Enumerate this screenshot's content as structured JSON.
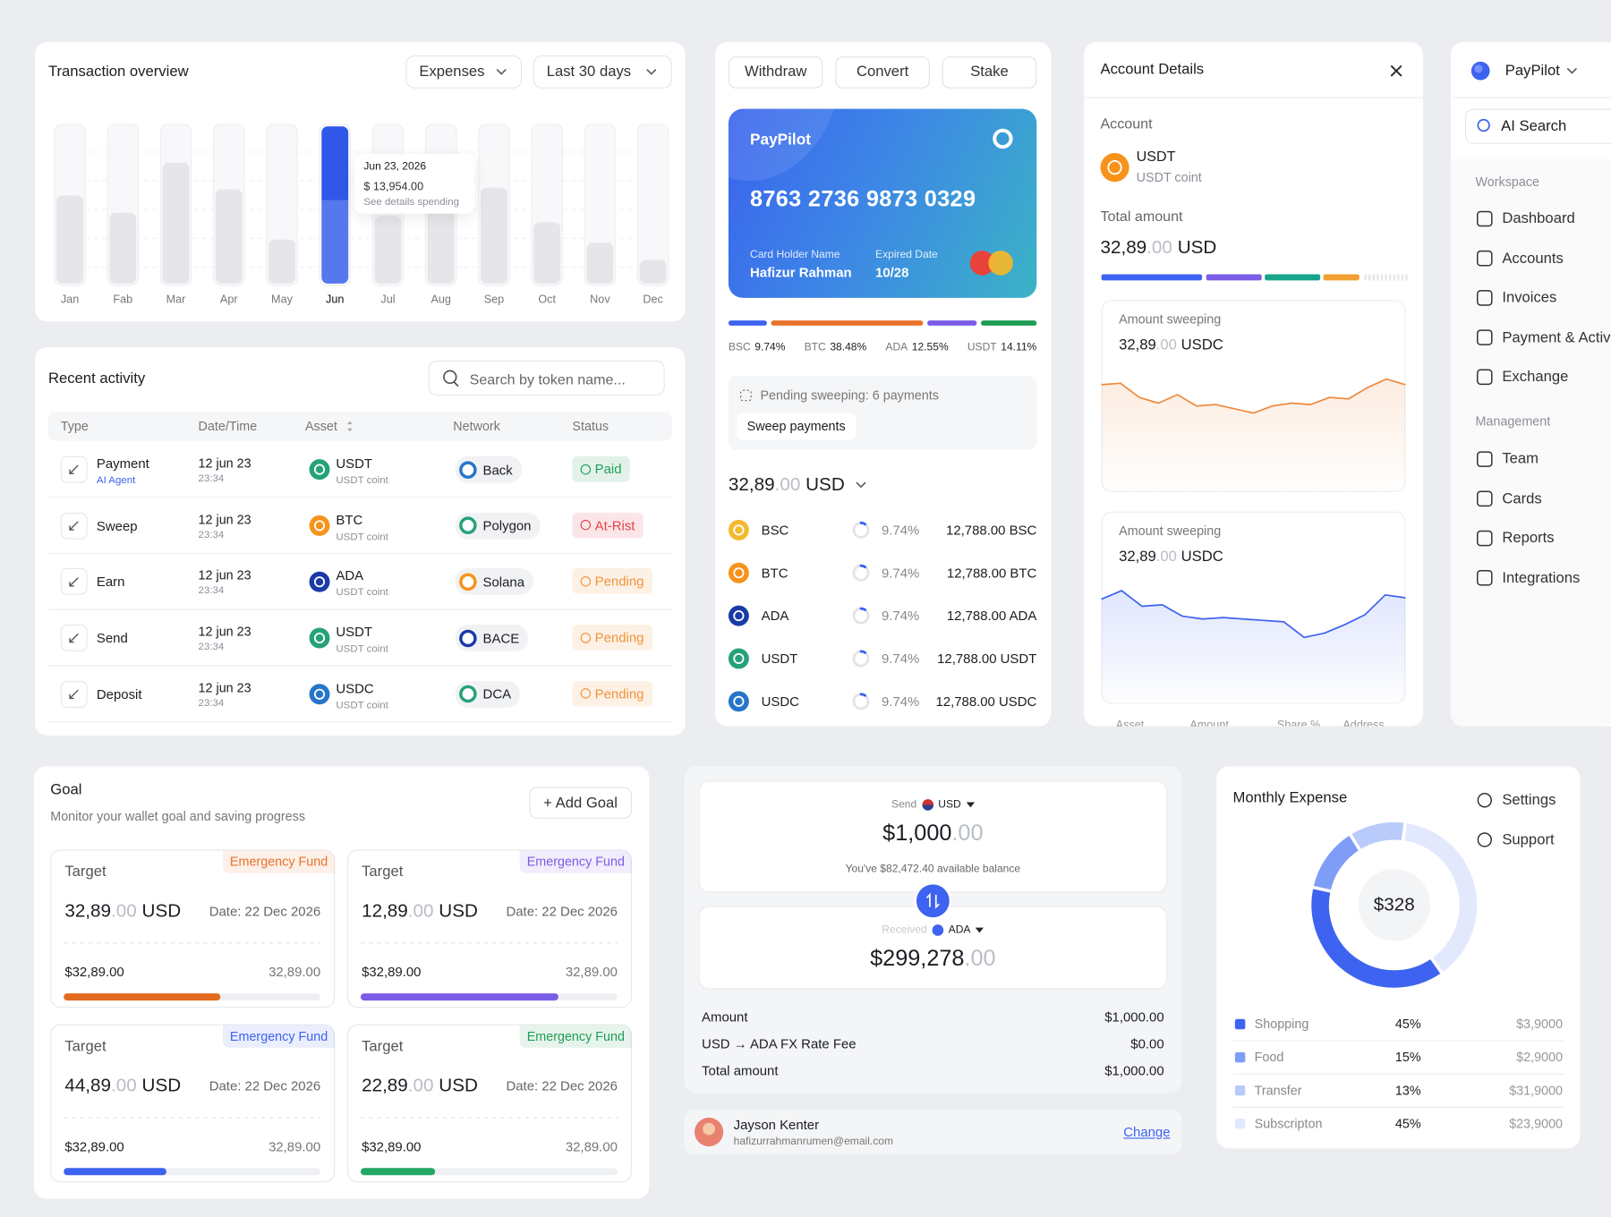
{
  "transaction_overview": {
    "title": "Transaction overview",
    "filters": [
      "Expenses",
      "Last 30 days"
    ],
    "chart": {
      "type": "bar",
      "categories": [
        "Jan",
        "Fab",
        "Mar",
        "Apr",
        "May",
        "Jun",
        "Jul",
        "Aug",
        "Sep",
        "Oct",
        "Nov",
        "Dec"
      ],
      "values": [
        56,
        45,
        77,
        60,
        28,
        100,
        43,
        47,
        61,
        39,
        26,
        15
      ],
      "ylim": [
        0,
        100
      ],
      "color": "#e6e6ea",
      "highlight": "Jun",
      "highlight_color": "#2f57e8"
    },
    "tooltip": {
      "date": "Jun 23, 2026",
      "amount": "$ 13,954.00",
      "note": "See details spending"
    }
  },
  "recent_activity": {
    "title": "Recent activity",
    "search_placeholder": "Search by token name...",
    "columns": [
      "Type",
      "Date/Time",
      "Asset",
      "Network",
      "Status"
    ],
    "rows": [
      {
        "type": "Payment",
        "type_note": "AI Agent",
        "date": "12 jun 23",
        "time": "23:34",
        "asset": "USDT",
        "asset_note": "USDT coint",
        "asset_color": "#26a17b",
        "network": "Back",
        "network_color": "#2775ca",
        "status": "Paid",
        "status_color": "#22a05a"
      },
      {
        "type": "Sweep",
        "date": "12 jun 23",
        "time": "23:34",
        "asset": "BTC",
        "asset_note": "USDT coint",
        "asset_color": "#f7931a",
        "network": "Polygon",
        "network_color": "#26a17b",
        "status": "At-Rist",
        "status_color": "#e0454b"
      },
      {
        "type": "Earn",
        "date": "12 jun 23",
        "time": "23:34",
        "asset": "ADA",
        "asset_note": "USDT coint",
        "asset_color": "#1a3aa8",
        "network": "Solana",
        "network_color": "#f7931a",
        "status": "Pending",
        "status_color": "#f0933c"
      },
      {
        "type": "Send",
        "date": "12 jun 23",
        "time": "23:34",
        "asset": "USDT",
        "asset_note": "USDT coint",
        "asset_color": "#26a17b",
        "network": "BACE",
        "network_color": "#1a3aa8",
        "status": "Pending",
        "status_color": "#f0933c"
      },
      {
        "type": "Deposit",
        "date": "12 jun 23",
        "time": "23:34",
        "asset": "USDC",
        "asset_note": "USDT coint",
        "asset_color": "#2775ca",
        "network": "DCA",
        "network_color": "#26a17b",
        "status": "Pending",
        "status_color": "#f0933c"
      }
    ]
  },
  "card_panel": {
    "actions": [
      "Withdraw",
      "Convert",
      "Stake"
    ],
    "card": {
      "brand": "PayPilot",
      "number": "8763 2736 9873 0329",
      "holder_label": "Card Holder Name",
      "holder": "Hafizur Rahman",
      "expiry_label": "Expired Date",
      "expiry": "10/28"
    },
    "allocation": {
      "categories": [
        "BSC",
        "BTC",
        "ADA",
        "USDT"
      ],
      "values": [
        9.74,
        38.48,
        12.55,
        14.11
      ],
      "value_labels": [
        "9.74%",
        "38.48%",
        "12.55%",
        "14.11%"
      ],
      "colors": [
        "#3d63f0",
        "#e8722a",
        "#7b5ce6",
        "#1f9d55"
      ]
    },
    "pending": {
      "text": "Pending sweeping: 6 payments",
      "button": "Sweep payments"
    },
    "balance": {
      "main": "32,89",
      "cents": ".00",
      "unit": "USD"
    },
    "holdings": {
      "assets": [
        "BSC",
        "BTC",
        "ADA",
        "USDT",
        "USDC"
      ],
      "colors": [
        "#f3ba2f",
        "#f7931a",
        "#1a3aa8",
        "#26a17b",
        "#2775ca"
      ],
      "values": [
        9.74,
        9.74,
        9.74,
        9.74,
        9.74
      ],
      "value_labels": [
        "9.74%",
        "9.74%",
        "9.74%",
        "9.74%",
        "9.74%"
      ],
      "amounts": [
        "12,788.00 BSC",
        "12,788.00 BTC",
        "12,788.00 ADA",
        "12,788.00 USDT",
        "12,788.00 USDC"
      ],
      "ring_color": "#3d63f0"
    }
  },
  "account_details": {
    "title": "Account Details",
    "account_label": "Account",
    "asset": "USDT",
    "asset_note": "USDT coint",
    "asset_color": "#f7931a",
    "total_label": "Total amount",
    "total": {
      "main": "32,89",
      "cents": ".00",
      "unit": "USD"
    },
    "sweeps": [
      {
        "type": "line",
        "label": "Amount sweeping",
        "amount": {
          "main": "32,89",
          "cents": ".00",
          "unit": "USDC"
        },
        "values": [
          75,
          76,
          66,
          62,
          68,
          60,
          61,
          58,
          55,
          60,
          62,
          61,
          66,
          65,
          73,
          79,
          75
        ],
        "ylim": [
          0,
          100
        ],
        "color": "#ee8a3f"
      },
      {
        "type": "line",
        "label": "Amount sweeping",
        "amount": {
          "main": "32,89",
          "cents": ".00",
          "unit": "USDC"
        },
        "values": [
          73,
          79,
          68,
          69,
          61,
          59,
          60,
          59,
          58,
          57,
          46,
          49,
          55,
          62,
          76,
          74
        ],
        "ylim": [
          0,
          100
        ],
        "color": "#3d63f0"
      }
    ],
    "table_columns": [
      "Asset",
      "Amount",
      "Share %",
      "Address"
    ]
  },
  "sidebar": {
    "brand": "PayPilot",
    "search": "AI Search",
    "workspace_label": "Workspace",
    "workspace": [
      "Dashboard",
      "Accounts",
      "Invoices",
      "Payment & Activity",
      "Exchange"
    ],
    "management_label": "Management",
    "management": [
      "Team",
      "Cards",
      "Reports",
      "Integrations"
    ],
    "extra": [
      "Settings",
      "Support"
    ]
  },
  "goal": {
    "title": "Goal",
    "subtitle": "Monitor your wallet goal and saving progress",
    "button": "+ Add Goal",
    "cards": [
      {
        "tag": "Emergency Fund",
        "tag_color": "#e8722a",
        "label": "Target",
        "amount": {
          "main": "32,89",
          "cents": ".00",
          "unit": "USD"
        },
        "date": "Date: 22 Dec 2026",
        "saved": "$32,89.00",
        "total": "32,89.00",
        "progress": 61,
        "color": "#e36a1e"
      },
      {
        "tag": "Emergency Fund",
        "tag_color": "#7b5ce6",
        "label": "Target",
        "amount": {
          "main": "12,89",
          "cents": ".00",
          "unit": "USD"
        },
        "date": "Date: 22 Dec 2026",
        "saved": "$32,89.00",
        "total": "32,89.00",
        "progress": 77,
        "color": "#7b5ce6"
      },
      {
        "tag": "Emergency Fund",
        "tag_color": "#3d63f0",
        "label": "Target",
        "amount": {
          "main": "44,89",
          "cents": ".00",
          "unit": "USD"
        },
        "date": "Date: 22 Dec 2026",
        "saved": "$32,89.00",
        "total": "32,89.00",
        "progress": 40,
        "color": "#3d63f0"
      },
      {
        "tag": "Emergency Fund",
        "tag_color": "#1f9d55",
        "label": "Target",
        "amount": {
          "main": "22,89",
          "cents": ".00",
          "unit": "USD"
        },
        "date": "Date: 22 Dec 2026",
        "saved": "$32,89.00",
        "total": "32,89.00",
        "progress": 29,
        "color": "#22a863"
      }
    ]
  },
  "swap": {
    "send_label": "Send",
    "send_currency": "USD",
    "send_amount": {
      "main": "$1,000",
      "cents": ".00"
    },
    "balance_note": "You've $82,472.40 available balance",
    "receive_label": "Received",
    "receive_currency": "ADA",
    "receive_amount": {
      "main": "$299,278",
      "cents": ".00"
    },
    "rows": [
      [
        "Amount",
        "$1,000.00"
      ],
      [
        "USD → ADA FX Rate Fee",
        "$0.00"
      ],
      [
        "Total amount",
        "$1,000.00"
      ]
    ],
    "user": {
      "name": "Jayson Kenter",
      "email": "hafizurrahmanrumen@email.com",
      "action": "Change"
    }
  },
  "monthly_expense": {
    "title": "Monthly Expense",
    "chart": {
      "type": "pie",
      "center_label": "$328",
      "categories": [
        "Shopping",
        "Food",
        "Transfer",
        "Subscripton"
      ],
      "values": [
        45,
        15,
        13,
        45
      ],
      "value_labels": [
        "45%",
        "15%",
        "13%",
        "45%"
      ],
      "amounts": [
        "$3,9000",
        "$2,9000",
        "$31,9000",
        "$23,9000"
      ],
      "colors": [
        "#3d63f0",
        "#7f9cf6",
        "#b9cbfb",
        "#e3e9fd"
      ]
    }
  }
}
